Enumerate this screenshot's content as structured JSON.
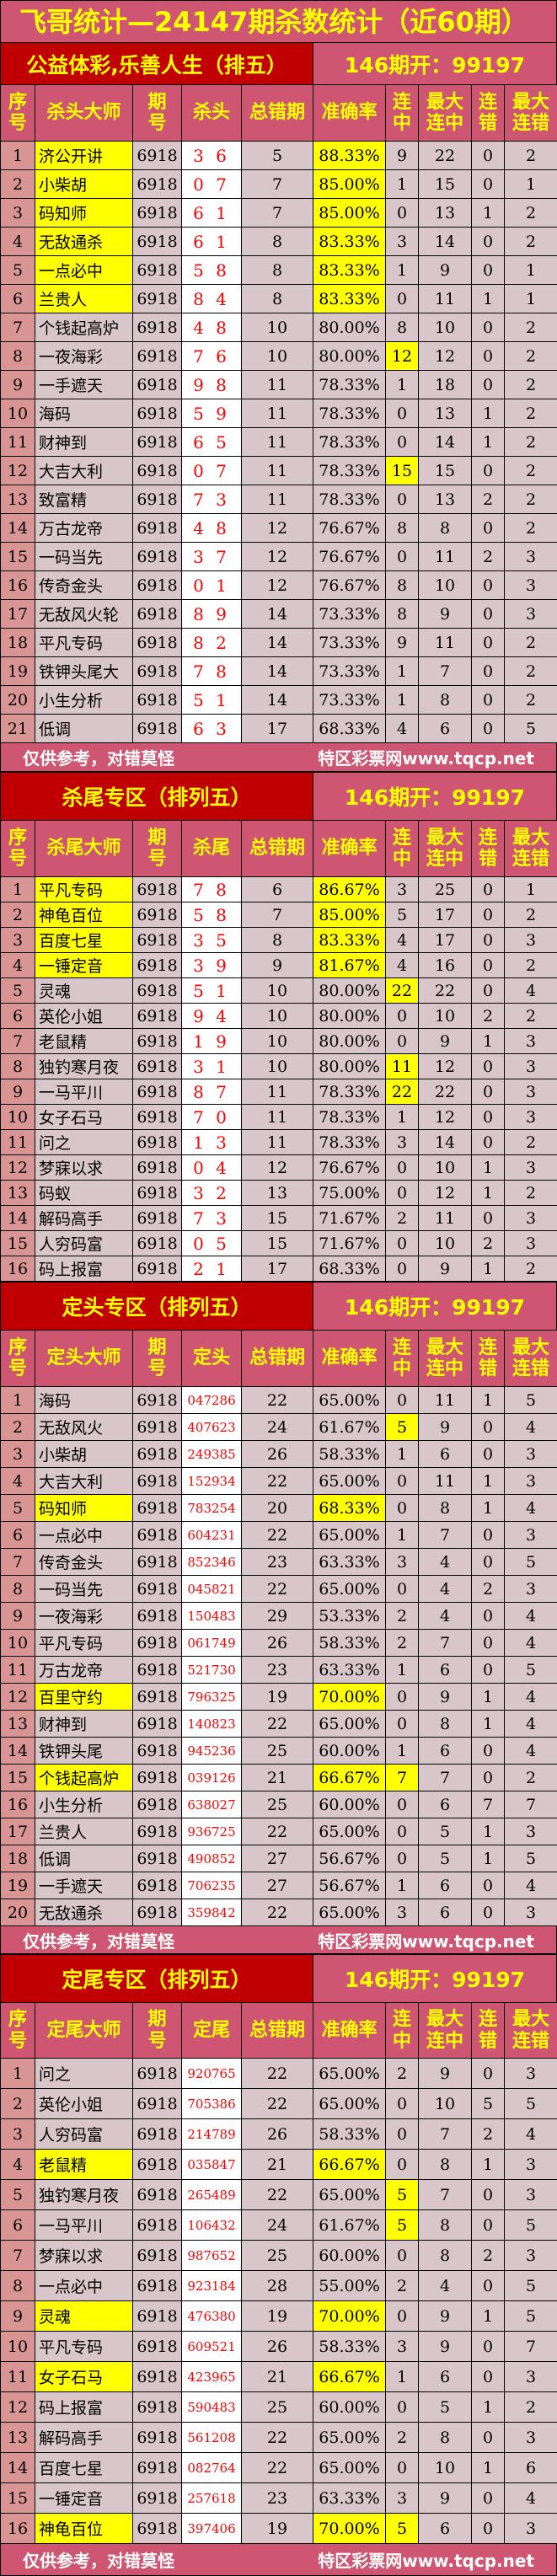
{
  "title": "飞哥统计—24147期杀数统计（近60期）",
  "footer": {
    "left": "仅供参考，对错莫怪",
    "right": "特区彩票网www.tqcp.net"
  },
  "colors": {
    "pink": "#cf5672",
    "dark_red": "#c00000",
    "yellow": "#ffff00",
    "cell": "#d9c6ca",
    "seq": "#d99593",
    "pick": "#ff0000"
  },
  "sections": [
    {
      "name": "公益体彩,乐善人生（排五）",
      "result": "146期开：99197",
      "headers": [
        "序号",
        "杀头大师",
        "期号",
        "杀头",
        "总错期",
        "准确率",
        "连中",
        "最大连中",
        "连错",
        "最大连错"
      ],
      "highlight_rows": [
        1,
        2,
        3,
        4,
        5,
        6
      ],
      "highlight_streak": [
        8,
        12
      ],
      "footer": true,
      "rows": [
        [
          "1",
          "济公开讲",
          "6918",
          "3 6",
          "5",
          "88.33%",
          "9",
          "22",
          "0",
          "2"
        ],
        [
          "2",
          "小柴胡",
          "6918",
          "0 7",
          "7",
          "85.00%",
          "1",
          "15",
          "0",
          "1"
        ],
        [
          "3",
          "码知师",
          "6918",
          "6 1",
          "7",
          "85.00%",
          "0",
          "13",
          "1",
          "2"
        ],
        [
          "4",
          "无敌通杀",
          "6918",
          "6 1",
          "8",
          "83.33%",
          "3",
          "14",
          "0",
          "2"
        ],
        [
          "5",
          "一点必中",
          "6918",
          "5 8",
          "8",
          "83.33%",
          "1",
          "9",
          "0",
          "1"
        ],
        [
          "6",
          "兰贵人",
          "6918",
          "8 4",
          "8",
          "83.33%",
          "0",
          "11",
          "1",
          "1"
        ],
        [
          "7",
          "个钱起高炉",
          "6918",
          "4 8",
          "10",
          "80.00%",
          "8",
          "10",
          "0",
          "2"
        ],
        [
          "8",
          "一夜海彩",
          "6918",
          "7 6",
          "10",
          "80.00%",
          "12",
          "12",
          "0",
          "2"
        ],
        [
          "9",
          "一手遮天",
          "6918",
          "9 8",
          "11",
          "78.33%",
          "1",
          "18",
          "0",
          "2"
        ],
        [
          "10",
          "海码",
          "6918",
          "5 9",
          "11",
          "78.33%",
          "0",
          "13",
          "1",
          "2"
        ],
        [
          "11",
          "财神到",
          "6918",
          "6 5",
          "11",
          "78.33%",
          "0",
          "14",
          "1",
          "2"
        ],
        [
          "12",
          "大吉大利",
          "6918",
          "0 7",
          "11",
          "78.33%",
          "15",
          "15",
          "0",
          "2"
        ],
        [
          "13",
          "致富精",
          "6918",
          "7 3",
          "11",
          "78.33%",
          "0",
          "13",
          "2",
          "2"
        ],
        [
          "14",
          "万古龙帝",
          "6918",
          "4 8",
          "12",
          "76.67%",
          "8",
          "8",
          "0",
          "2"
        ],
        [
          "15",
          "一码当先",
          "6918",
          "3 7",
          "12",
          "76.67%",
          "0",
          "11",
          "2",
          "3"
        ],
        [
          "16",
          "传奇金头",
          "6918",
          "0 1",
          "12",
          "76.67%",
          "8",
          "10",
          "0",
          "3"
        ],
        [
          "17",
          "无敌风火轮",
          "6918",
          "8 9",
          "14",
          "73.33%",
          "8",
          "9",
          "0",
          "3"
        ],
        [
          "18",
          "平凡专码",
          "6918",
          "8 2",
          "14",
          "73.33%",
          "9",
          "11",
          "0",
          "2"
        ],
        [
          "19",
          "铁钾头尾大",
          "6918",
          "7 8",
          "14",
          "73.33%",
          "1",
          "7",
          "0",
          "2"
        ],
        [
          "20",
          "小生分析",
          "6918",
          "5 1",
          "14",
          "73.33%",
          "1",
          "8",
          "0",
          "2"
        ],
        [
          "21",
          "低调",
          "6918",
          "6 3",
          "17",
          "68.33%",
          "4",
          "6",
          "0",
          "5"
        ]
      ]
    },
    {
      "name": "杀尾专区（排列五）",
      "result": "146期开：99197",
      "headers": [
        "序号",
        "杀尾大师",
        "期号",
        "杀尾",
        "总错期",
        "准确率",
        "连中",
        "最大连中",
        "连错",
        "最大连错"
      ],
      "highlight_rows": [
        1,
        2,
        3,
        4
      ],
      "highlight_streak": [
        5,
        8,
        9
      ],
      "footer": false,
      "rows": [
        [
          "1",
          "平凡专码",
          "6918",
          "7 8",
          "6",
          "86.67%",
          "3",
          "25",
          "0",
          "1"
        ],
        [
          "2",
          "神龟百位",
          "6918",
          "5 8",
          "7",
          "85.00%",
          "5",
          "17",
          "0",
          "2"
        ],
        [
          "3",
          "百度七星",
          "6918",
          "3 5",
          "8",
          "83.33%",
          "4",
          "17",
          "0",
          "3"
        ],
        [
          "4",
          "一锤定音",
          "6918",
          "3 9",
          "9",
          "81.67%",
          "4",
          "16",
          "0",
          "2"
        ],
        [
          "5",
          "灵魂",
          "6918",
          "5 1",
          "10",
          "80.00%",
          "22",
          "22",
          "0",
          "4"
        ],
        [
          "6",
          "英伦小姐",
          "6918",
          "9 4",
          "10",
          "80.00%",
          "0",
          "10",
          "2",
          "2"
        ],
        [
          "7",
          "老鼠精",
          "6918",
          "1 9",
          "10",
          "80.00%",
          "0",
          "9",
          "1",
          "3"
        ],
        [
          "8",
          "独钓寒月夜",
          "6918",
          "3 1",
          "10",
          "80.00%",
          "11",
          "12",
          "0",
          "3"
        ],
        [
          "9",
          "一马平川",
          "6918",
          "8 7",
          "11",
          "78.33%",
          "22",
          "22",
          "0",
          "3"
        ],
        [
          "10",
          "女子石马",
          "6918",
          "7 0",
          "11",
          "78.33%",
          "1",
          "12",
          "0",
          "3"
        ],
        [
          "11",
          "问之",
          "6918",
          "1 3",
          "11",
          "78.33%",
          "3",
          "14",
          "0",
          "2"
        ],
        [
          "12",
          "梦寐以求",
          "6918",
          "0 4",
          "12",
          "76.67%",
          "0",
          "10",
          "1",
          "3"
        ],
        [
          "13",
          "码蚁",
          "6918",
          "3 2",
          "13",
          "75.00%",
          "0",
          "12",
          "1",
          "2"
        ],
        [
          "14",
          "解码高手",
          "6918",
          "7 3",
          "15",
          "71.67%",
          "2",
          "11",
          "0",
          "3"
        ],
        [
          "15",
          "人穷码富",
          "6918",
          "0 5",
          "15",
          "71.67%",
          "0",
          "10",
          "2",
          "3"
        ],
        [
          "16",
          "码上报富",
          "6918",
          "2 1",
          "17",
          "68.33%",
          "0",
          "9",
          "1",
          "2"
        ]
      ]
    },
    {
      "name": "定头专区（排列五）",
      "result": "146期开：99197",
      "headers": [
        "序号",
        "定头大师",
        "期号",
        "定头",
        "总错期",
        "准确率",
        "连中",
        "最大连中",
        "连错",
        "最大连错"
      ],
      "highlight_rows": [
        5,
        12,
        15
      ],
      "highlight_streak": [
        2,
        15
      ],
      "footer": true,
      "rows": [
        [
          "1",
          "海码",
          "6918",
          "047286",
          "22",
          "65.00%",
          "0",
          "11",
          "1",
          "5"
        ],
        [
          "2",
          "无敌风火",
          "6918",
          "407623",
          "24",
          "61.67%",
          "5",
          "9",
          "0",
          "4"
        ],
        [
          "3",
          "小柴胡",
          "6918",
          "249385",
          "26",
          "58.33%",
          "1",
          "6",
          "0",
          "3"
        ],
        [
          "4",
          "大吉大利",
          "6918",
          "152934",
          "22",
          "65.00%",
          "0",
          "11",
          "1",
          "3"
        ],
        [
          "5",
          "码知师",
          "6918",
          "783254",
          "20",
          "68.33%",
          "0",
          "8",
          "1",
          "4"
        ],
        [
          "6",
          "一点必中",
          "6918",
          "604231",
          "22",
          "65.00%",
          "1",
          "7",
          "0",
          "3"
        ],
        [
          "7",
          "传奇金头",
          "6918",
          "852346",
          "23",
          "63.33%",
          "3",
          "4",
          "0",
          "5"
        ],
        [
          "8",
          "一码当先",
          "6918",
          "045821",
          "22",
          "65.00%",
          "0",
          "4",
          "2",
          "3"
        ],
        [
          "9",
          "一夜海彩",
          "6918",
          "150483",
          "29",
          "53.33%",
          "2",
          "4",
          "0",
          "4"
        ],
        [
          "10",
          "平凡专码",
          "6918",
          "061749",
          "26",
          "58.33%",
          "2",
          "7",
          "0",
          "4"
        ],
        [
          "11",
          "万古龙帝",
          "6918",
          "521730",
          "23",
          "63.33%",
          "1",
          "6",
          "0",
          "5"
        ],
        [
          "12",
          "百里守约",
          "6918",
          "796325",
          "19",
          "70.00%",
          "0",
          "9",
          "1",
          "4"
        ],
        [
          "13",
          "财神到",
          "6918",
          "140823",
          "22",
          "65.00%",
          "0",
          "8",
          "1",
          "4"
        ],
        [
          "14",
          "铁钾头尾",
          "6918",
          "945236",
          "25",
          "60.00%",
          "1",
          "6",
          "0",
          "4"
        ],
        [
          "15",
          "个钱起高炉",
          "6918",
          "039126",
          "21",
          "66.67%",
          "7",
          "7",
          "0",
          "2"
        ],
        [
          "16",
          "小生分析",
          "6918",
          "638027",
          "25",
          "60.00%",
          "0",
          "6",
          "7",
          "7"
        ],
        [
          "17",
          "兰贵人",
          "6918",
          "936725",
          "22",
          "65.00%",
          "0",
          "5",
          "1",
          "3"
        ],
        [
          "18",
          "低调",
          "6918",
          "490852",
          "27",
          "56.67%",
          "0",
          "5",
          "1",
          "5"
        ],
        [
          "19",
          "一手遮天",
          "6918",
          "706235",
          "27",
          "56.67%",
          "1",
          "6",
          "0",
          "4"
        ],
        [
          "20",
          "无敌通杀",
          "6918",
          "359842",
          "22",
          "65.00%",
          "3",
          "6",
          "0",
          "3"
        ]
      ]
    },
    {
      "name": "定尾专区（排列五）",
      "result": "146期开：99197",
      "headers": [
        "序号",
        "定尾大师",
        "期号",
        "定尾",
        "总错期",
        "准确率",
        "连中",
        "最大连中",
        "连错",
        "最大连错"
      ],
      "highlight_rows": [
        4,
        9,
        11,
        16
      ],
      "highlight_streak": [
        5,
        6,
        16
      ],
      "footer": true,
      "rows": [
        [
          "1",
          "问之",
          "6918",
          "920765",
          "22",
          "65.00%",
          "2",
          "9",
          "0",
          "3"
        ],
        [
          "2",
          "英伦小姐",
          "6918",
          "705386",
          "22",
          "65.00%",
          "0",
          "10",
          "5",
          "5"
        ],
        [
          "3",
          "人穷码富",
          "6918",
          "214789",
          "26",
          "58.33%",
          "0",
          "7",
          "2",
          "4"
        ],
        [
          "4",
          "老鼠精",
          "6918",
          "035847",
          "21",
          "66.67%",
          "0",
          "8",
          "1",
          "3"
        ],
        [
          "5",
          "独钓寒月夜",
          "6918",
          "265489",
          "22",
          "65.00%",
          "5",
          "7",
          "0",
          "3"
        ],
        [
          "6",
          "一马平川",
          "6918",
          "106432",
          "24",
          "61.67%",
          "5",
          "8",
          "0",
          "5"
        ],
        [
          "7",
          "梦寐以求",
          "6918",
          "987652",
          "25",
          "60.00%",
          "0",
          "8",
          "2",
          "3"
        ],
        [
          "8",
          "一点必中",
          "6918",
          "923184",
          "28",
          "55.00%",
          "2",
          "4",
          "0",
          "5"
        ],
        [
          "9",
          "灵魂",
          "6918",
          "476380",
          "19",
          "70.00%",
          "0",
          "9",
          "1",
          "5"
        ],
        [
          "10",
          "平凡专码",
          "6918",
          "609521",
          "26",
          "58.33%",
          "3",
          "9",
          "0",
          "7"
        ],
        [
          "11",
          "女子石马",
          "6918",
          "423965",
          "21",
          "66.67%",
          "1",
          "6",
          "0",
          "3"
        ],
        [
          "12",
          "码上报富",
          "6918",
          "590483",
          "25",
          "60.00%",
          "0",
          "5",
          "1",
          "2"
        ],
        [
          "13",
          "解码高手",
          "6918",
          "561208",
          "22",
          "65.00%",
          "2",
          "8",
          "0",
          "3"
        ],
        [
          "14",
          "百度七星",
          "6918",
          "082764",
          "22",
          "65.00%",
          "0",
          "10",
          "1",
          "6"
        ],
        [
          "15",
          "一锤定音",
          "6918",
          "257618",
          "23",
          "63.33%",
          "3",
          "9",
          "0",
          "4"
        ],
        [
          "16",
          "神龟百位",
          "6918",
          "397406",
          "19",
          "70.00%",
          "5",
          "6",
          "0",
          "3"
        ]
      ]
    }
  ]
}
